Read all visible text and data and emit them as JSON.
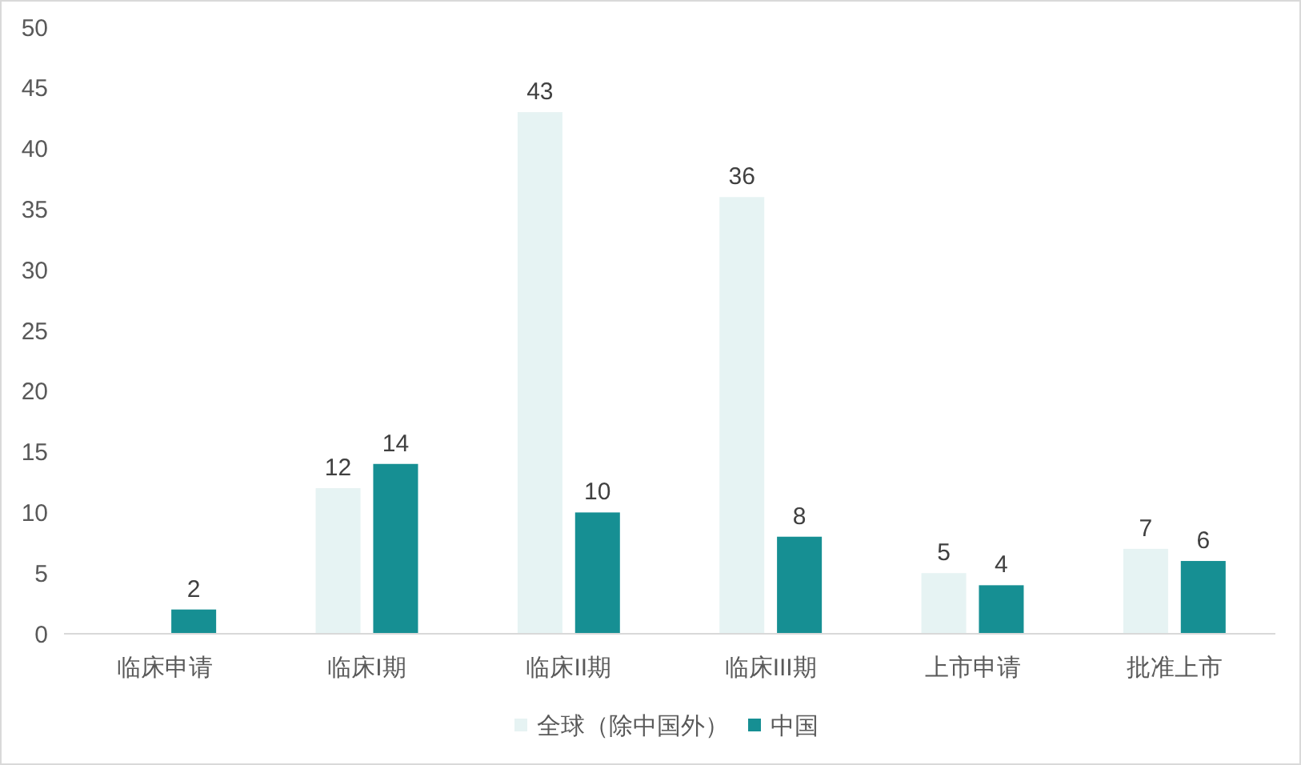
{
  "chart_data": {
    "type": "bar",
    "categories": [
      "临床申请",
      "临床I期",
      "临床II期",
      "临床III期",
      "上市申请",
      "批准上市"
    ],
    "series": [
      {
        "name": "全球（除中国外）",
        "color": "#e6f3f3",
        "values": [
          null,
          12,
          43,
          36,
          5,
          7
        ]
      },
      {
        "name": "中国",
        "color": "#168f93",
        "values": [
          2,
          14,
          10,
          8,
          4,
          6
        ]
      }
    ],
    "ylim": [
      0,
      50
    ],
    "yticks": [
      0,
      5,
      10,
      15,
      20,
      25,
      30,
      35,
      40,
      45,
      50
    ],
    "grid": false,
    "legend": "bottom",
    "data_labels": true
  }
}
